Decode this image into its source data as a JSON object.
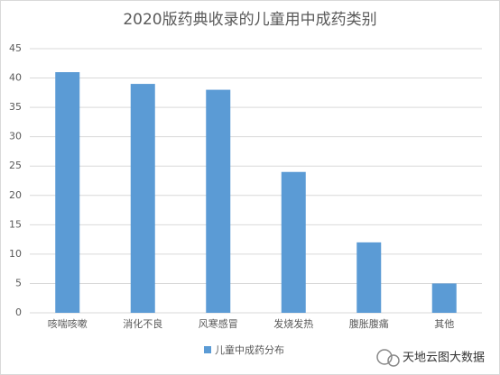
{
  "chart_data": {
    "type": "bar",
    "title": "2020版药典收录的儿童用中成药类别",
    "categories": [
      "咳喘咳嗽",
      "消化不良",
      "风寒感冒",
      "发烧发热",
      "腹胀腹痛",
      "其他"
    ],
    "series": [
      {
        "name": "儿童中成药分布",
        "color": "#5b9bd5",
        "values": [
          41,
          39,
          38,
          24,
          12,
          5
        ]
      }
    ],
    "ylim": [
      0,
      45
    ],
    "yticks": [
      0,
      5,
      10,
      15,
      20,
      25,
      30,
      35,
      40,
      45
    ],
    "grid": true,
    "legend": "bottom"
  },
  "watermark": "天地云图大数据"
}
